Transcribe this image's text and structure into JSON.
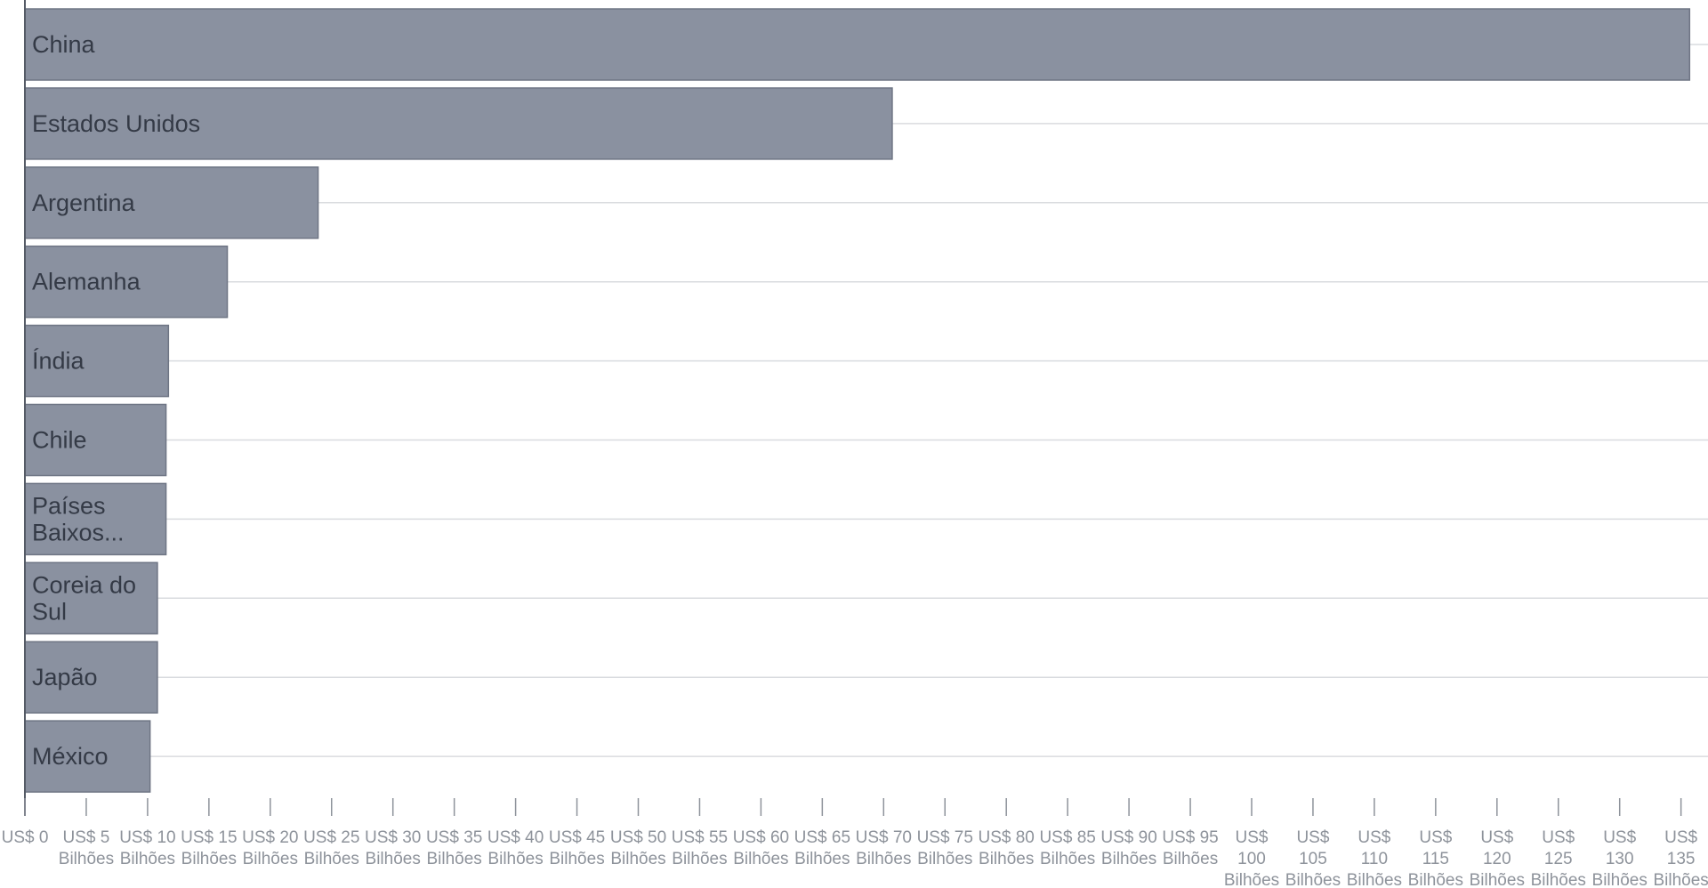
{
  "chart_data": {
    "type": "bar",
    "orientation": "horizontal",
    "categories": [
      "China",
      "Estados Unidos",
      "Argentina",
      "Alemanha",
      "Índia",
      "Chile",
      "Países Baixos...",
      "Coreia do Sul",
      "Japão",
      "México"
    ],
    "values": [
      135.7,
      70.7,
      23.9,
      16.5,
      11.7,
      11.5,
      11.5,
      10.8,
      10.8,
      10.2
    ],
    "unit": "US$ Bilhões",
    "xlim": [
      0,
      136
    ],
    "x_ticks": [
      0,
      5,
      10,
      15,
      20,
      25,
      30,
      35,
      40,
      45,
      50,
      55,
      60,
      65,
      70,
      75,
      80,
      85,
      90,
      95,
      100,
      105,
      110,
      115,
      120,
      125,
      130,
      135
    ],
    "x_tick_labels": [
      "US$ 0",
      "US$ 5 Bilhões",
      "US$ 10 Bilhões",
      "US$ 15 Bilhões",
      "US$ 20 Bilhões",
      "US$ 25 Bilhões",
      "US$ 30 Bilhões",
      "US$ 35 Bilhões",
      "US$ 40 Bilhões",
      "US$ 45 Bilhões",
      "US$ 50 Bilhões",
      "US$ 55 Bilhões",
      "US$ 60 Bilhões",
      "US$ 65 Bilhões",
      "US$ 70 Bilhões",
      "US$ 75 Bilhões",
      "US$ 80 Bilhões",
      "US$ 85 Bilhões",
      "US$ 90 Bilhões",
      "US$ 95 Bilhões",
      "US$ 100 Bilhões",
      "US$ 105 Bilhões",
      "US$ 110 Bilhões",
      "US$ 115 Bilhões",
      "US$ 120 Bilhões",
      "US$ 125 Bilhões",
      "US$ 130 Bilhões",
      "US$ 135 Bilhões"
    ],
    "title": "",
    "xlabel": "",
    "ylabel": "",
    "grid": true,
    "legend": "none",
    "colors": {
      "bar": "#8a91a0",
      "bar_stroke": "#6e7584",
      "grid": "#d9dbdf",
      "axis": "#555b66",
      "label": "#343a46",
      "tick_label": "#8e939b"
    }
  }
}
